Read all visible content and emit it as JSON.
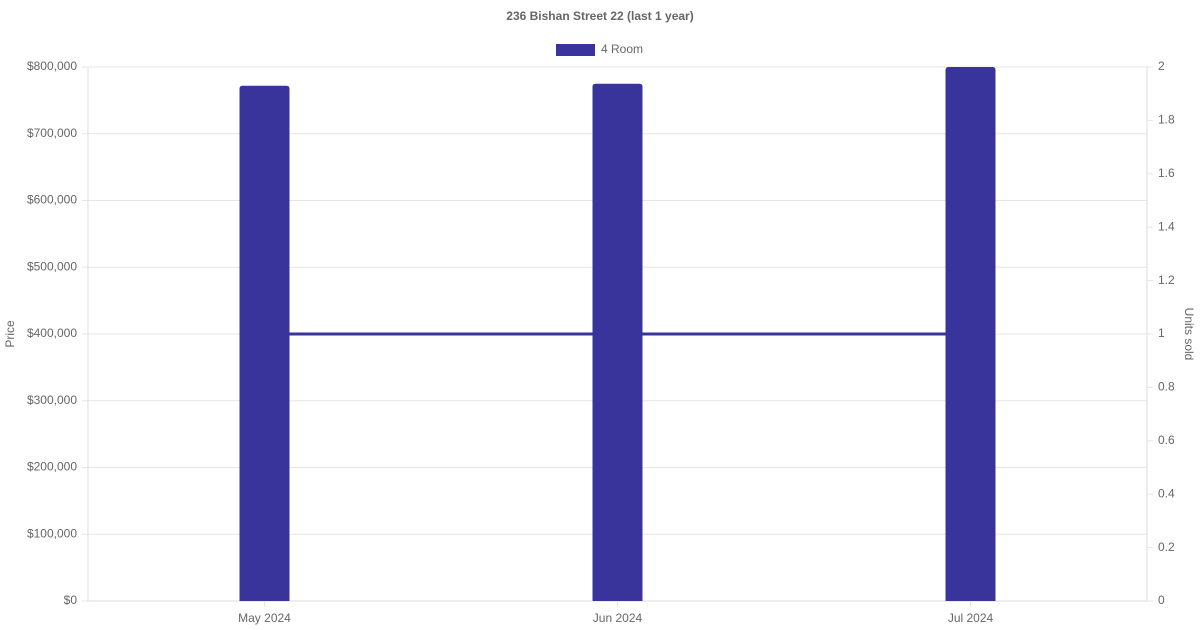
{
  "chart_data": {
    "type": "bar",
    "title": "236 Bishan Street 22 (last 1 year)",
    "categories": [
      "May 2024",
      "Jun 2024",
      "Jul 2024"
    ],
    "series": [
      {
        "name": "4 Room",
        "type": "bar",
        "color": "#38349c",
        "values": [
          772000,
          775000,
          800000
        ]
      },
      {
        "type": "line",
        "color": "#38349c",
        "axis": "y2",
        "values": [
          1,
          1,
          1
        ]
      }
    ],
    "y_label": "Price",
    "y2_label": "Units sold",
    "ylim": [
      0,
      800000
    ],
    "yticks": [
      {
        "value": 0,
        "label": "$0"
      },
      {
        "value": 100000,
        "label": "$100,000"
      },
      {
        "value": 200000,
        "label": "$200,000"
      },
      {
        "value": 300000,
        "label": "$300,000"
      },
      {
        "value": 400000,
        "label": "$400,000"
      },
      {
        "value": 500000,
        "label": "$500,000"
      },
      {
        "value": 600000,
        "label": "$600,000"
      },
      {
        "value": 700000,
        "label": "$700,000"
      },
      {
        "value": 800000,
        "label": "$800,000"
      }
    ],
    "y2lim": [
      0,
      2
    ],
    "y2ticks": [
      0,
      0.2,
      0.4,
      0.6,
      0.8,
      1,
      1.2,
      1.4,
      1.6,
      1.8,
      2
    ],
    "grid": true,
    "legend": "top"
  }
}
